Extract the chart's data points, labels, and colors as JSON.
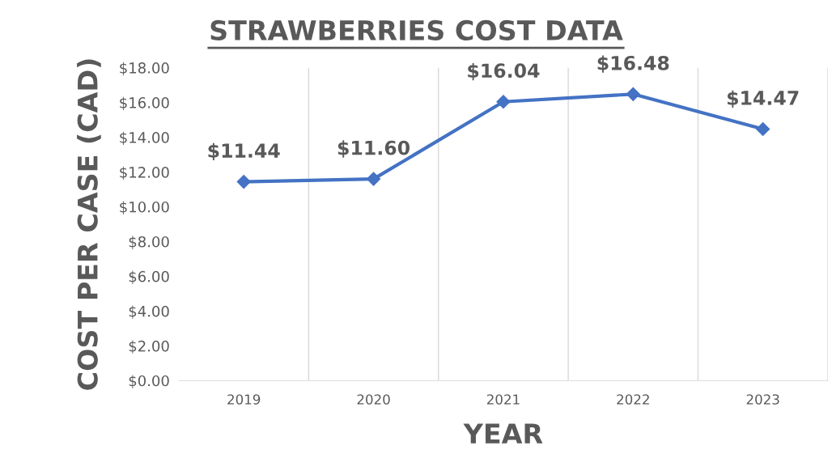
{
  "chart_data": {
    "type": "line",
    "title": "STRAWBERRIES COST DATA",
    "xlabel": "YEAR",
    "ylabel": "COST PER CASE (CAD)",
    "categories": [
      "2019",
      "2020",
      "2021",
      "2022",
      "2023"
    ],
    "series": [
      {
        "color": "#4472c4",
        "values": [
          11.44,
          11.6,
          16.04,
          16.48,
          14.47
        ],
        "value_labels": [
          "$11.44",
          "$11.60",
          "$16.04",
          "$16.48",
          "$14.47"
        ]
      }
    ],
    "ylim": [
      0,
      18
    ],
    "yticks": [
      {
        "value": 0,
        "label": "$0.00"
      },
      {
        "value": 2,
        "label": "$2.00"
      },
      {
        "value": 4,
        "label": "$4.00"
      },
      {
        "value": 6,
        "label": "$6.00"
      },
      {
        "value": 8,
        "label": "$8.00"
      },
      {
        "value": 10,
        "label": "$10.00"
      },
      {
        "value": 12,
        "label": "$12.00"
      },
      {
        "value": 14,
        "label": "$14.00"
      },
      {
        "value": 16,
        "label": "$16.00"
      },
      {
        "value": 18,
        "label": "$18.00"
      }
    ],
    "grid": "x",
    "marker": "diamond",
    "line_style": "solid",
    "legend": false
  }
}
